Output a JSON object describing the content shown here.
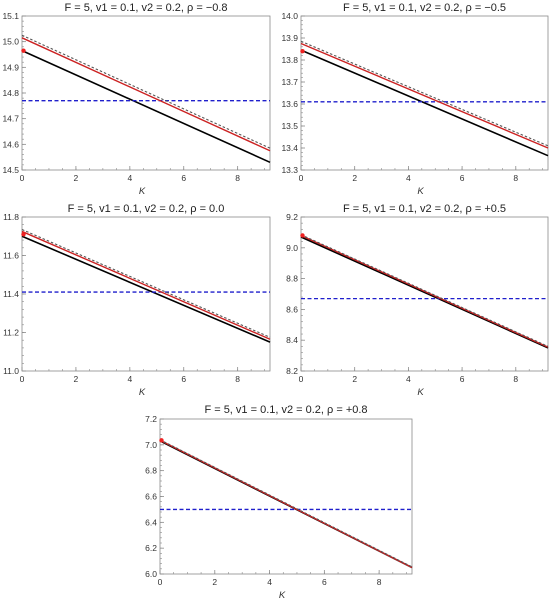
{
  "chart_data": [
    {
      "type": "line",
      "title": "F = 5,  v1 = 0.1,  v2 = 0.2,  ρ = −0.8",
      "xlabel": "K",
      "ylabel": "",
      "xlim": [
        0,
        9.2
      ],
      "ylim": [
        14.5,
        15.1
      ],
      "xticks": [
        "0",
        "2",
        "4",
        "6",
        "8"
      ],
      "xtick_values": [
        0,
        2,
        4,
        6,
        8
      ],
      "yticks": [
        "14.5",
        "14.6",
        "14.7",
        "14.8",
        "14.9",
        "15.0",
        "15.1"
      ],
      "ytick_values": [
        14.5,
        14.6,
        14.7,
        14.8,
        14.9,
        15.0,
        15.1
      ],
      "grid": false,
      "series": [
        {
          "style": "solid",
          "color": "#000000",
          "x": [
            0,
            9.2
          ],
          "y": [
            14.965,
            14.53
          ]
        },
        {
          "style": "dashed",
          "color": "#1f1fcc",
          "x": [
            0,
            9.2
          ],
          "y": [
            14.77,
            14.77
          ]
        },
        {
          "style": "solid",
          "color": "#cc2222",
          "x": [
            0,
            9.2
          ],
          "y": [
            15.015,
            14.575
          ]
        },
        {
          "style": "dashed",
          "color": "#555555",
          "x": [
            0,
            9.2
          ],
          "y": [
            15.025,
            14.585
          ]
        },
        {
          "style": "markers",
          "color": "#ee2222",
          "x": [
            0
          ],
          "y": [
            14.965
          ]
        }
      ]
    },
    {
      "type": "line",
      "title": "F = 5,  v1 = 0.1,  v2 = 0.2,  ρ = −0.5",
      "xlabel": "K",
      "ylabel": "",
      "xlim": [
        0,
        9.2
      ],
      "ylim": [
        13.3,
        14.0
      ],
      "xticks": [
        "0",
        "2",
        "4",
        "6",
        "8"
      ],
      "xtick_values": [
        0,
        2,
        4,
        6,
        8
      ],
      "yticks": [
        "13.3",
        "13.4",
        "13.5",
        "13.6",
        "13.7",
        "13.8",
        "13.9",
        "14.0"
      ],
      "ytick_values": [
        13.3,
        13.4,
        13.5,
        13.6,
        13.7,
        13.8,
        13.9,
        14.0
      ],
      "grid": false,
      "series": [
        {
          "style": "solid",
          "color": "#000000",
          "x": [
            0,
            9.2
          ],
          "y": [
            13.845,
            13.365
          ]
        },
        {
          "style": "dashed",
          "color": "#1f1fcc",
          "x": [
            0,
            9.2
          ],
          "y": [
            13.61,
            13.61
          ]
        },
        {
          "style": "solid",
          "color": "#cc2222",
          "x": [
            0,
            9.2
          ],
          "y": [
            13.875,
            13.4
          ]
        },
        {
          "style": "dashed",
          "color": "#555555",
          "x": [
            0,
            9.2
          ],
          "y": [
            13.885,
            13.41
          ]
        },
        {
          "style": "markers",
          "color": "#ee2222",
          "x": [
            0
          ],
          "y": [
            13.84
          ]
        }
      ]
    },
    {
      "type": "line",
      "title": "F = 5,  v1 = 0.1,  v2 = 0.2,  ρ =  0.0",
      "xlabel": "K",
      "ylabel": "",
      "xlim": [
        0,
        9.2
      ],
      "ylim": [
        11.0,
        11.8
      ],
      "xticks": [
        "0",
        "2",
        "4",
        "6",
        "8"
      ],
      "xtick_values": [
        0,
        2,
        4,
        6,
        8
      ],
      "yticks": [
        "11.0",
        "11.2",
        "11.4",
        "11.6",
        "11.8"
      ],
      "ytick_values": [
        11.0,
        11.2,
        11.4,
        11.6,
        11.8
      ],
      "grid": false,
      "series": [
        {
          "style": "solid",
          "color": "#000000",
          "x": [
            0,
            9.2
          ],
          "y": [
            11.7,
            11.15
          ]
        },
        {
          "style": "dashed",
          "color": "#1f1fcc",
          "x": [
            0,
            9.2
          ],
          "y": [
            11.41,
            11.41
          ]
        },
        {
          "style": "solid",
          "color": "#cc2222",
          "x": [
            0,
            9.2
          ],
          "y": [
            11.725,
            11.165
          ]
        },
        {
          "style": "dashed",
          "color": "#555555",
          "x": [
            0,
            9.2
          ],
          "y": [
            11.735,
            11.175
          ]
        },
        {
          "style": "markers",
          "color": "#ee2222",
          "x": [
            0
          ],
          "y": [
            11.71
          ]
        }
      ]
    },
    {
      "type": "line",
      "title": "F = 5,  v1 = 0.1,  v2 = 0.2,  ρ = +0.5",
      "xlabel": "K",
      "ylabel": "",
      "xlim": [
        0,
        9.2
      ],
      "ylim": [
        8.2,
        9.2
      ],
      "xticks": [
        "0",
        "2",
        "4",
        "6",
        "8"
      ],
      "xtick_values": [
        0,
        2,
        4,
        6,
        8
      ],
      "yticks": [
        "8.2",
        "8.4",
        "8.6",
        "8.8",
        "9.0",
        "9.2"
      ],
      "ytick_values": [
        8.2,
        8.4,
        8.6,
        8.8,
        9.0,
        9.2
      ],
      "grid": false,
      "series": [
        {
          "style": "solid",
          "color": "#000000",
          "x": [
            0,
            9.2
          ],
          "y": [
            9.07,
            8.35
          ]
        },
        {
          "style": "dashed",
          "color": "#1f1fcc",
          "x": [
            0,
            9.2
          ],
          "y": [
            8.67,
            8.67
          ]
        },
        {
          "style": "solid",
          "color": "#cc2222",
          "x": [
            0,
            9.2
          ],
          "y": [
            9.08,
            8.355
          ]
        },
        {
          "style": "dashed",
          "color": "#555555",
          "x": [
            0,
            9.2
          ],
          "y": [
            9.085,
            8.36
          ]
        },
        {
          "style": "markers",
          "color": "#ee2222",
          "x": [
            0
          ],
          "y": [
            9.08
          ]
        }
      ]
    },
    {
      "type": "line",
      "title": "F = 5,  v1 = 0.1,  v2 = 0.2,  ρ = +0.8",
      "xlabel": "K",
      "ylabel": "",
      "xlim": [
        0,
        9.2
      ],
      "ylim": [
        6.0,
        7.2
      ],
      "xticks": [
        "0",
        "2",
        "4",
        "6",
        "8"
      ],
      "xtick_values": [
        0,
        2,
        4,
        6,
        8
      ],
      "yticks": [
        "6.0",
        "6.2",
        "6.4",
        "6.6",
        "6.8",
        "7.0",
        "7.2"
      ],
      "ytick_values": [
        6.0,
        6.2,
        6.4,
        6.6,
        6.8,
        7.0,
        7.2
      ],
      "grid": false,
      "series": [
        {
          "style": "solid",
          "color": "#000000",
          "x": [
            0,
            9.2
          ],
          "y": [
            7.03,
            6.05
          ]
        },
        {
          "style": "dashed",
          "color": "#1f1fcc",
          "x": [
            0,
            9.2
          ],
          "y": [
            6.5,
            6.5
          ]
        },
        {
          "style": "solid",
          "color": "#cc2222",
          "x": [
            0,
            9.2
          ],
          "y": [
            7.035,
            6.05
          ]
        },
        {
          "style": "dashed",
          "color": "#555555",
          "x": [
            0,
            9.2
          ],
          "y": [
            7.04,
            6.055
          ]
        },
        {
          "style": "markers",
          "color": "#ee2222",
          "x": [
            0
          ],
          "y": [
            7.035
          ]
        }
      ]
    }
  ]
}
